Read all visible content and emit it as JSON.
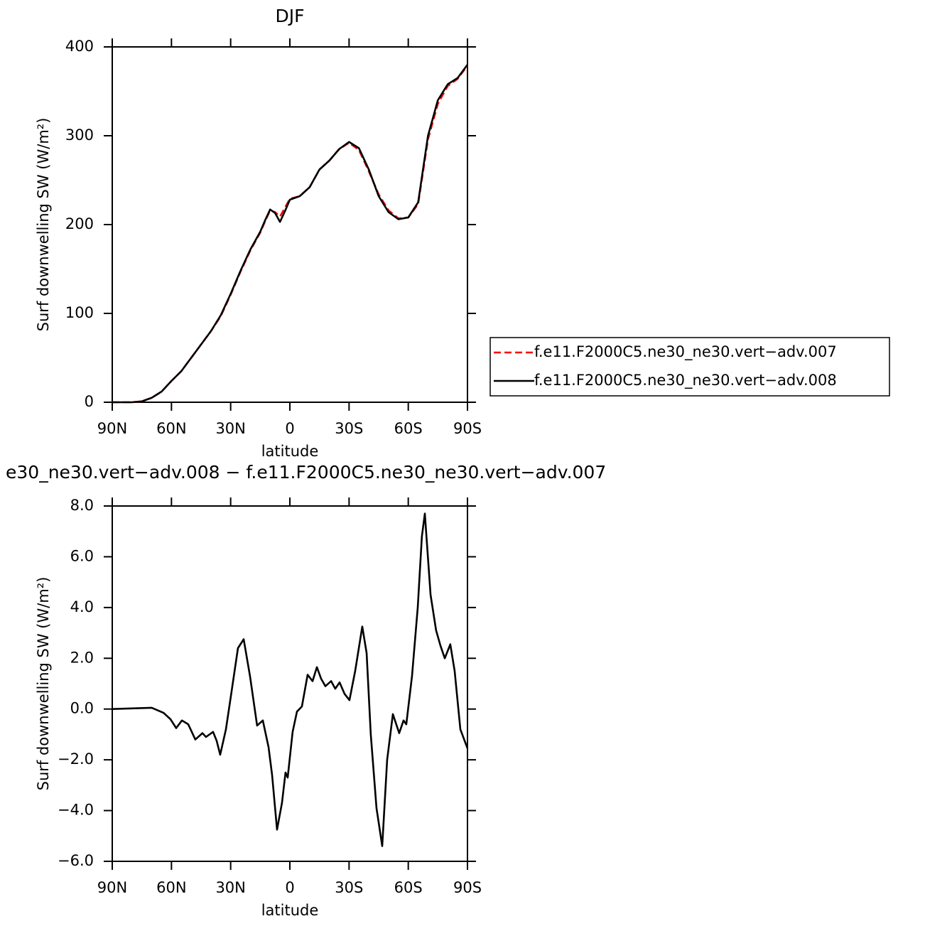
{
  "chart_data": [
    {
      "type": "line",
      "title": "DJF",
      "xlabel": "latitude",
      "ylabel": "Surf downwelling SW (W/m²)",
      "x": [
        90,
        85,
        80,
        75,
        70,
        65,
        60,
        55,
        50,
        45,
        40,
        35,
        30,
        25,
        20,
        15,
        12.5,
        10,
        7.5,
        5,
        2.5,
        0,
        -5,
        -10,
        -15,
        -20,
        -25,
        -30,
        -35,
        -40,
        -45,
        -50,
        -55,
        -60,
        -65,
        -70,
        -75,
        -80,
        -85,
        -90
      ],
      "series": [
        {
          "name": "f.e11.F2000C5.ne30_ne30.vert−adv.007",
          "color": "#ff0000",
          "line_style": "dashed",
          "values": [
            0,
            0,
            0,
            1,
            5,
            12,
            24,
            35,
            50,
            65,
            80,
            97,
            121,
            147,
            171,
            191,
            204,
            216,
            214,
            209,
            219,
            229,
            232,
            242,
            262,
            272,
            285,
            292,
            284,
            260,
            234,
            216,
            207,
            208,
            223,
            296,
            336,
            356,
            364,
            379
          ]
        },
        {
          "name": "f.e11.F2000C5.ne30_ne30.vert−adv.008",
          "color": "#000000",
          "line_style": "solid",
          "values": [
            0,
            0,
            0,
            1,
            5,
            12,
            24,
            35,
            50,
            65,
            80,
            98,
            122,
            148,
            172,
            192,
            205,
            217,
            213,
            203,
            215,
            228,
            232,
            242,
            262,
            272,
            285,
            293,
            286,
            262,
            232,
            214,
            206,
            208,
            225,
            300,
            340,
            358,
            365,
            380
          ]
        }
      ],
      "xlim": [
        90,
        -90
      ],
      "xticks": [
        {
          "value": 90,
          "label": "90N"
        },
        {
          "value": 60,
          "label": "60N"
        },
        {
          "value": 30,
          "label": "30N"
        },
        0,
        {
          "value": -30,
          "label": "30S"
        },
        {
          "value": -60,
          "label": "60S"
        },
        {
          "value": -90,
          "label": "90S"
        }
      ],
      "ylim": [
        0,
        400
      ],
      "yticks": [
        0,
        100,
        200,
        300,
        400
      ],
      "legend": "right"
    },
    {
      "type": "line",
      "title": "e30_ne30.vert−adv.008 − f.e11.F2000C5.ne30_ne30.vert−adv.007",
      "xlabel": "latitude",
      "ylabel": "Surf downwelling SW (W/m²)",
      "x": [
        90,
        70,
        64,
        60.5,
        57.6,
        54.7,
        51.5,
        47.9,
        44.3,
        42.5,
        38.9,
        37.1,
        35.3,
        32.4,
        29.9,
        26.3,
        23.4,
        20.2,
        16.6,
        13.7,
        10.8,
        9.0,
        6.5,
        4.0,
        2.2,
        1.1,
        -1.4,
        -3.6,
        -6.1,
        -9.0,
        -11.5,
        -13.7,
        -15.8,
        -18.0,
        -20.9,
        -23.0,
        -25.2,
        -27.7,
        -30.2,
        -33.1,
        -36.7,
        -38.9,
        -41.0,
        -43.9,
        -46.8,
        -49.3,
        -52.2,
        -55.4,
        -57.6,
        -59.0,
        -61.9,
        -64.8,
        -66.9,
        -68.4,
        -71.3,
        -74.1,
        -76.3,
        -78.5,
        -81.3,
        -83.5,
        -86.4,
        -90
      ],
      "values": [
        0,
        0.05,
        -0.15,
        -0.4,
        -0.75,
        -0.45,
        -0.6,
        -1.2,
        -0.95,
        -1.1,
        -0.9,
        -1.25,
        -1.8,
        -0.8,
        0.5,
        2.4,
        2.75,
        1.3,
        -0.65,
        -0.45,
        -1.5,
        -2.6,
        -4.75,
        -3.7,
        -2.5,
        -2.7,
        -0.9,
        -0.1,
        0.1,
        1.35,
        1.1,
        1.65,
        1.2,
        0.9,
        1.1,
        0.8,
        1.05,
        0.6,
        0.35,
        1.5,
        3.25,
        2.2,
        -1.0,
        -3.9,
        -5.4,
        -2.0,
        -0.2,
        -0.95,
        -0.45,
        -0.6,
        1.3,
        4.0,
        6.8,
        7.7,
        4.5,
        3.1,
        2.5,
        2.0,
        2.55,
        1.5,
        -0.8,
        -1.55
      ],
      "color": "#000000",
      "xlim": [
        90,
        -90
      ],
      "xticks": [
        {
          "value": 90,
          "label": "90N"
        },
        {
          "value": 60,
          "label": "60N"
        },
        {
          "value": 30,
          "label": "30N"
        },
        0,
        {
          "value": -30,
          "label": "30S"
        },
        {
          "value": -60,
          "label": "60S"
        },
        {
          "value": -90,
          "label": "90S"
        }
      ],
      "ylim": [
        -6,
        8
      ],
      "yticks": [
        {
          "value": -6,
          "label": "−6.0"
        },
        {
          "value": -4,
          "label": "−4.0"
        },
        {
          "value": -2,
          "label": "−2.0"
        },
        {
          "value": 0,
          "label": "0.0"
        },
        {
          "value": 2,
          "label": "2.0"
        },
        {
          "value": 4,
          "label": "4.0"
        },
        {
          "value": 6,
          "label": "6.0"
        },
        {
          "value": 8,
          "label": "8.0"
        }
      ]
    }
  ]
}
